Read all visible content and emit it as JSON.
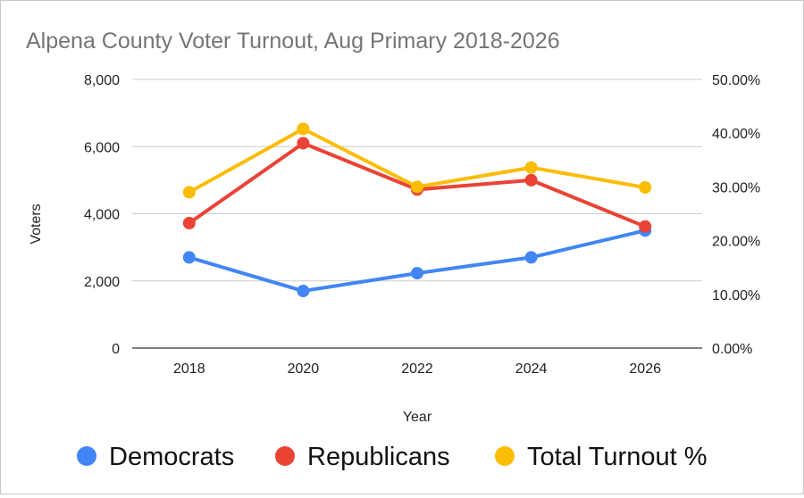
{
  "chart_data": {
    "type": "line",
    "title": "Alpena County Voter Turnout, Aug Primary 2018-2026",
    "xlabel": "Year",
    "ylabel": "Voters",
    "categories": [
      "2018",
      "2020",
      "2022",
      "2024",
      "2026"
    ],
    "left_axis": {
      "ylim": [
        0,
        8000
      ],
      "ticks": [
        "0",
        "2,000",
        "4,000",
        "6,000",
        "8,000"
      ],
      "tick_values": [
        0,
        2000,
        4000,
        6000,
        8000
      ]
    },
    "right_axis": {
      "ylim": [
        0,
        50
      ],
      "ticks": [
        "0.00%",
        "10.00%",
        "20.00%",
        "30.00%",
        "40.00%",
        "50.00%"
      ],
      "tick_values": [
        0,
        10,
        20,
        30,
        40,
        50
      ]
    },
    "series": [
      {
        "name": "Democrats",
        "axis": "left",
        "color": "#4285f4",
        "values": [
          2700,
          1700,
          2230,
          2700,
          3500
        ]
      },
      {
        "name": "Republicans",
        "axis": "left",
        "color": "#ea4335",
        "values": [
          3720,
          6100,
          4720,
          5000,
          3620
        ]
      },
      {
        "name": "Total Turnout %",
        "axis": "right",
        "color": "#fbbc04",
        "values": [
          29.0,
          40.8,
          30.0,
          33.6,
          29.9
        ]
      }
    ],
    "grid": true,
    "legend_position": "bottom"
  }
}
